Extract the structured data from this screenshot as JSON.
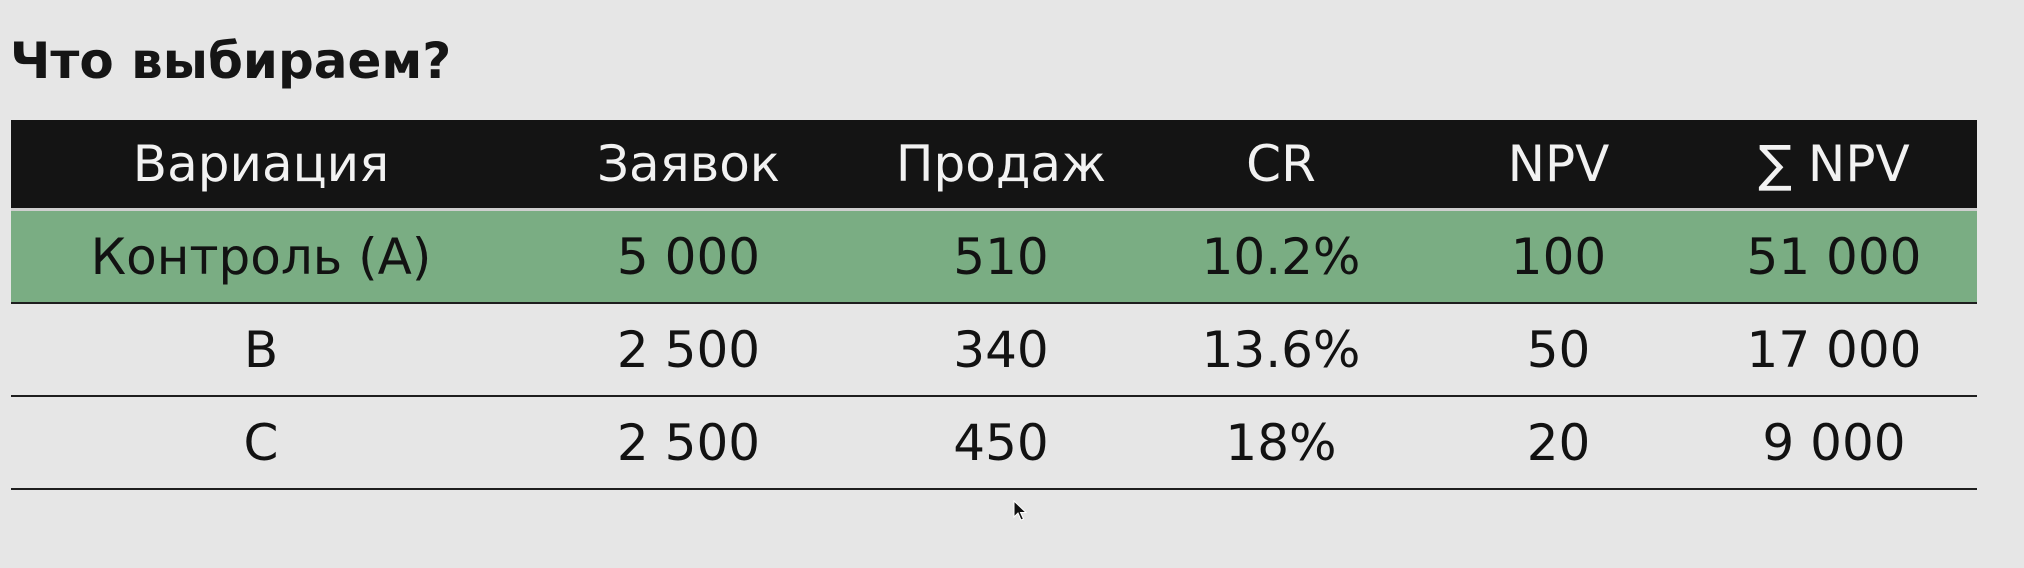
{
  "slide": {
    "title": "Что выбираем?"
  },
  "table": {
    "headers": [
      "Вариация",
      "Заявок",
      "Продаж",
      "CR",
      "NPV",
      "∑ NPV"
    ],
    "rows": [
      {
        "cells": [
          "Контроль (A)",
          "5 000",
          "510",
          "10.2%",
          "100",
          "51 000"
        ],
        "highlighted": true
      },
      {
        "cells": [
          "B",
          "2 500",
          "340",
          "13.6%",
          "50",
          "17 000"
        ],
        "highlighted": false
      },
      {
        "cells": [
          "C",
          "2 500",
          "450",
          "18%",
          "20",
          "9 000"
        ],
        "highlighted": false
      }
    ]
  },
  "colors": {
    "header_bg": "#141414",
    "highlight_bg": "#7aad83",
    "page_bg": "#e6e6e6"
  },
  "icons": {
    "cursor": "mouse-pointer-icon"
  }
}
